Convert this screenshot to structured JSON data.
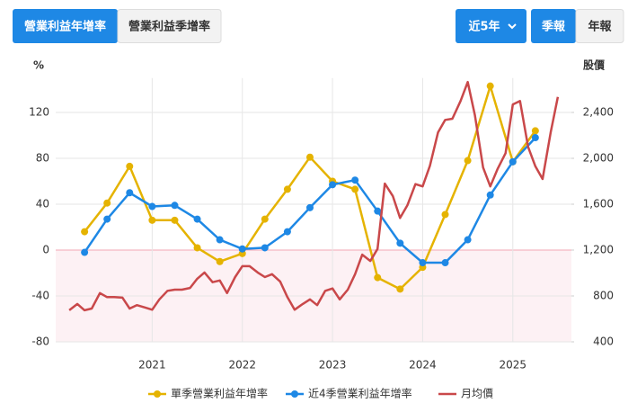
{
  "tabs": [
    "營業利益年增率",
    "營業利益季增率"
  ],
  "period": "近5年",
  "report_types": [
    "季報",
    "年報"
  ],
  "chart_data": {
    "type": "line",
    "y_label": "%",
    "y2_label": "股價",
    "xlim": [
      2019.93,
      2025.65
    ],
    "xticks": [
      2021,
      2022,
      2023,
      2024,
      2025
    ],
    "ylim": [
      -80,
      150
    ],
    "yticks": [
      -80,
      -40,
      0,
      40,
      80,
      120
    ],
    "y2lim": [
      400,
      2700
    ],
    "y2ticks": [
      400,
      800,
      {
        "value": 1200,
        "label": "1,200"
      },
      {
        "value": 1600,
        "label": "1,600"
      },
      {
        "value": 2000,
        "label": "2,000"
      },
      {
        "value": 2400,
        "label": "2,400"
      }
    ],
    "grid": true,
    "legend": "bottom",
    "series": [
      {
        "name": "單季營業利益年增率",
        "color": "#e5b300",
        "markers": true,
        "x": [
          2020.25,
          2020.5,
          2020.75,
          2021.0,
          2021.25,
          2021.5,
          2021.75,
          2022.0,
          2022.25,
          2022.5,
          2022.75,
          2023.0,
          2023.25,
          2023.5,
          2023.75,
          2024.0,
          2024.25,
          2024.5,
          2024.75,
          2025.0,
          2025.25
        ],
        "values": [
          16,
          41,
          73,
          26,
          26,
          2,
          -10,
          -3,
          27,
          53,
          81,
          60,
          53,
          -24,
          -34,
          -15,
          31,
          78,
          143,
          77,
          104
        ]
      },
      {
        "name": "近4季營業利益年增率",
        "color": "#1e88e5",
        "markers": true,
        "x": [
          2020.25,
          2020.5,
          2020.75,
          2021.0,
          2021.25,
          2021.5,
          2021.75,
          2022.0,
          2022.25,
          2022.5,
          2022.75,
          2023.0,
          2023.25,
          2023.5,
          2023.75,
          2024.0,
          2024.25,
          2024.5,
          2024.75,
          2025.0,
          2025.25
        ],
        "values": [
          -2,
          27,
          50,
          38,
          39,
          27,
          9,
          1,
          2,
          16,
          37,
          57,
          61,
          34,
          6,
          -11,
          -11,
          9,
          48,
          77,
          98
        ]
      },
      {
        "name": "月均價",
        "color": "#c9484a",
        "markers": false,
        "axis": "y2",
        "x": [
          2020.08,
          2020.17,
          2020.25,
          2020.33,
          2020.42,
          2020.5,
          2020.58,
          2020.67,
          2020.75,
          2020.83,
          2020.92,
          2021.0,
          2021.08,
          2021.17,
          2021.25,
          2021.33,
          2021.42,
          2021.5,
          2021.58,
          2021.67,
          2021.75,
          2021.83,
          2021.92,
          2022.0,
          2022.08,
          2022.17,
          2022.25,
          2022.33,
          2022.42,
          2022.5,
          2022.58,
          2022.67,
          2022.75,
          2022.83,
          2022.92,
          2023.0,
          2023.08,
          2023.17,
          2023.25,
          2023.33,
          2023.42,
          2023.5,
          2023.58,
          2023.67,
          2023.75,
          2023.83,
          2023.92,
          2024.0,
          2024.08,
          2024.17,
          2024.25,
          2024.33,
          2024.42,
          2024.5,
          2024.58,
          2024.67,
          2024.75,
          2024.83,
          2024.92,
          2025.0,
          2025.08,
          2025.17,
          2025.25,
          2025.33,
          2025.42,
          2025.5
        ],
        "values": [
          675,
          730,
          675,
          690,
          825,
          790,
          790,
          785,
          690,
          720,
          700,
          680,
          770,
          845,
          855,
          855,
          870,
          950,
          1005,
          920,
          935,
          825,
          965,
          1060,
          1060,
          1005,
          965,
          990,
          925,
          790,
          680,
          730,
          770,
          720,
          845,
          865,
          770,
          855,
          990,
          1160,
          1105,
          1210,
          1780,
          1670,
          1480,
          1590,
          1775,
          1755,
          1935,
          2225,
          2335,
          2345,
          2500,
          2665,
          2375,
          1920,
          1755,
          1905,
          2045,
          2470,
          2500,
          2100,
          1930,
          1820,
          2225,
          2535
        ]
      }
    ]
  }
}
